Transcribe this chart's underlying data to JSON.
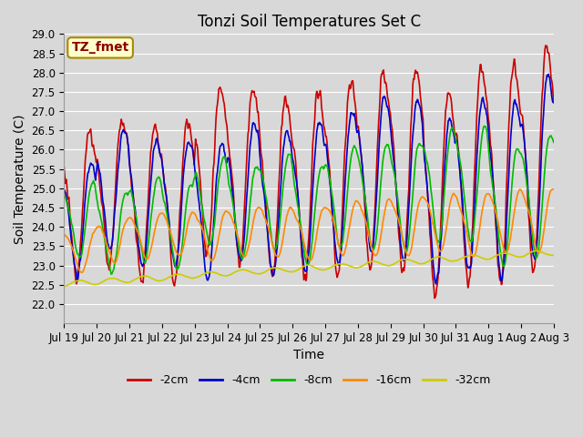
{
  "title": "Tonzi Soil Temperatures Set C",
  "xlabel": "Time",
  "ylabel": "Soil Temperature (C)",
  "ylim": [
    21.5,
    29.0
  ],
  "yticks": [
    22.0,
    22.5,
    23.0,
    23.5,
    24.0,
    24.5,
    25.0,
    25.5,
    26.0,
    26.5,
    27.0,
    27.5,
    28.0,
    28.5,
    29.0
  ],
  "xtick_labels": [
    "Jul 19",
    "Jul 20",
    "Jul 21",
    "Jul 22",
    "Jul 23",
    "Jul 24",
    "Jul 25",
    "Jul 26",
    "Jul 27",
    "Jul 28",
    "Jul 29",
    "Jul 30",
    "Jul 31",
    "Aug 1",
    "Aug 2",
    "Aug 3"
  ],
  "legend_labels": [
    "-2cm",
    "-4cm",
    "-8cm",
    "-16cm",
    "-32cm"
  ],
  "line_colors": [
    "#cc0000",
    "#0000cc",
    "#00bb00",
    "#ff8800",
    "#cccc00"
  ],
  "line_widths": [
    1.2,
    1.2,
    1.2,
    1.2,
    1.2
  ],
  "bg_color": "#d8d8d8",
  "plot_bg_color": "#d8d8d8",
  "annotation_text": "TZ_fmet",
  "annotation_bg": "#ffffcc",
  "annotation_border": "#aa8800",
  "title_fontsize": 12,
  "axis_label_fontsize": 10,
  "tick_fontsize": 8.5,
  "legend_fontsize": 9
}
